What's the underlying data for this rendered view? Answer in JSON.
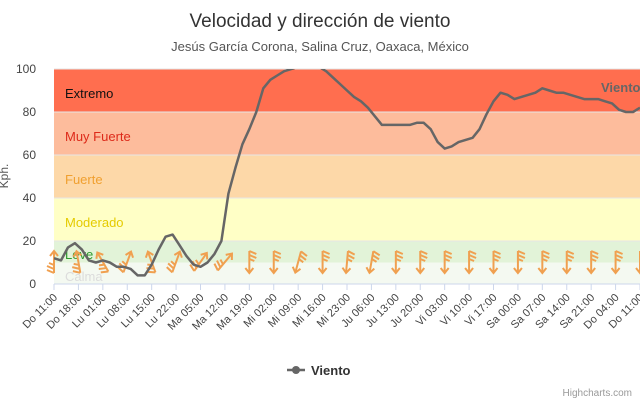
{
  "chart_data": {
    "type": "line",
    "title": "Velocidad y dirección de viento",
    "subtitle": "Jesús García Corona, Salina Cruz, Oaxaca, México",
    "ylabel": "Kph.",
    "ylim": [
      0,
      100
    ],
    "yticks": [
      "0",
      "20",
      "40",
      "60",
      "80",
      "100"
    ],
    "x_tick_labels": [
      "Do 11:00",
      "Do 18:00",
      "Lu 01:00",
      "Lu 08:00",
      "Lu 15:00",
      "Lu 22:00",
      "Ma 05:00",
      "Ma 12:00",
      "Ma 19:00",
      "Mi 02:00",
      "Mi 09:00",
      "Mi 16:00",
      "Mi 23:00",
      "Ju 06:00",
      "Ju 13:00",
      "Ju 20:00",
      "Vi 03:00",
      "Vi 10:00",
      "Vi 17:00",
      "Sa 00:00",
      "Sa 07:00",
      "Sa 14:00",
      "Sa 21:00",
      "Do 04:00",
      "Do 11:00"
    ],
    "bands": [
      {
        "label": "Calma",
        "from": 0,
        "to": 10,
        "color": "#f4f9f1",
        "label_color": "#dcdcdc"
      },
      {
        "label": "Leve",
        "from": 10,
        "to": 20,
        "color": "#e2f3d8",
        "label_color": "#2e9a2e"
      },
      {
        "label": "Moderado",
        "from": 20,
        "to": 40,
        "color": "#ffffc6",
        "label_color": "#e5cb00"
      },
      {
        "label": "Fuerte",
        "from": 40,
        "to": 60,
        "color": "#fdd8a8",
        "label_color": "#f0a030"
      },
      {
        "label": "Muy Fuerte",
        "from": 60,
        "to": 80,
        "color": "#fdbc9c",
        "label_color": "#dd2a1a"
      },
      {
        "label": "Extremo",
        "from": 80,
        "to": 100,
        "color": "#ff6e4f",
        "label_color": "#111111"
      }
    ],
    "series": [
      {
        "name": "Viento",
        "color": "#666666",
        "x": [
          0,
          2,
          4,
          6,
          8,
          10,
          12,
          14,
          16,
          18,
          20,
          22,
          24,
          26,
          28,
          30,
          32,
          34,
          36,
          38,
          40,
          42,
          44,
          46,
          48,
          50,
          52,
          54,
          56,
          58,
          60,
          62,
          64,
          66,
          68,
          70,
          72,
          74,
          76,
          78,
          80,
          82,
          84,
          86,
          88,
          90,
          92,
          94,
          96,
          98,
          100,
          102,
          104,
          106,
          108,
          110,
          112,
          114,
          116,
          118,
          120,
          122,
          124,
          126,
          128,
          130,
          132,
          134,
          136,
          138,
          140,
          142,
          144,
          146,
          148,
          150,
          152,
          154,
          156,
          158,
          160,
          162,
          164,
          166,
          168
        ],
        "values": [
          12,
          11,
          17,
          19,
          16,
          11,
          10,
          11,
          10,
          8,
          8,
          7,
          4,
          4,
          9,
          16,
          22,
          23,
          18,
          13,
          9,
          8,
          10,
          14,
          20,
          42,
          54,
          65,
          72,
          80,
          91,
          95,
          97,
          99,
          100,
          101,
          102,
          102,
          101,
          99,
          96,
          93,
          90,
          87,
          85,
          82,
          78,
          74,
          74,
          74,
          74,
          74,
          75,
          75,
          72,
          66,
          63,
          64,
          66,
          67,
          68,
          72,
          79,
          85,
          89,
          88,
          86,
          87,
          88,
          89,
          91,
          90,
          89,
          89,
          88,
          87,
          86,
          86,
          86,
          85,
          84,
          81,
          80,
          80,
          82
        ]
      }
    ],
    "arrows": [
      {
        "x": 0,
        "dir": 180
      },
      {
        "x": 7,
        "dir": 170
      },
      {
        "x": 14,
        "dir": 150
      },
      {
        "x": 21,
        "dir": 200
      },
      {
        "x": 28,
        "dir": 160
      },
      {
        "x": 35,
        "dir": 200
      },
      {
        "x": 42,
        "dir": 215
      },
      {
        "x": 49,
        "dir": 220
      },
      {
        "x": 56,
        "dir": 0
      },
      {
        "x": 63,
        "dir": 0
      },
      {
        "x": 70,
        "dir": 15
      },
      {
        "x": 77,
        "dir": 0
      },
      {
        "x": 84,
        "dir": 5
      },
      {
        "x": 91,
        "dir": 10
      },
      {
        "x": 98,
        "dir": 0
      },
      {
        "x": 105,
        "dir": 0
      },
      {
        "x": 112,
        "dir": 0
      },
      {
        "x": 119,
        "dir": 0
      },
      {
        "x": 126,
        "dir": 0
      },
      {
        "x": 133,
        "dir": 0
      },
      {
        "x": 140,
        "dir": 0
      },
      {
        "x": 147,
        "dir": 0
      },
      {
        "x": 154,
        "dir": 0
      },
      {
        "x": 161,
        "dir": 0
      },
      {
        "x": 168,
        "dir": 0
      }
    ],
    "arrow_color": "#f0a050",
    "legend": {
      "position": "bottom-center",
      "entries": [
        "Viento"
      ]
    },
    "credits": "Highcharts.com",
    "series_label": "Viento"
  }
}
